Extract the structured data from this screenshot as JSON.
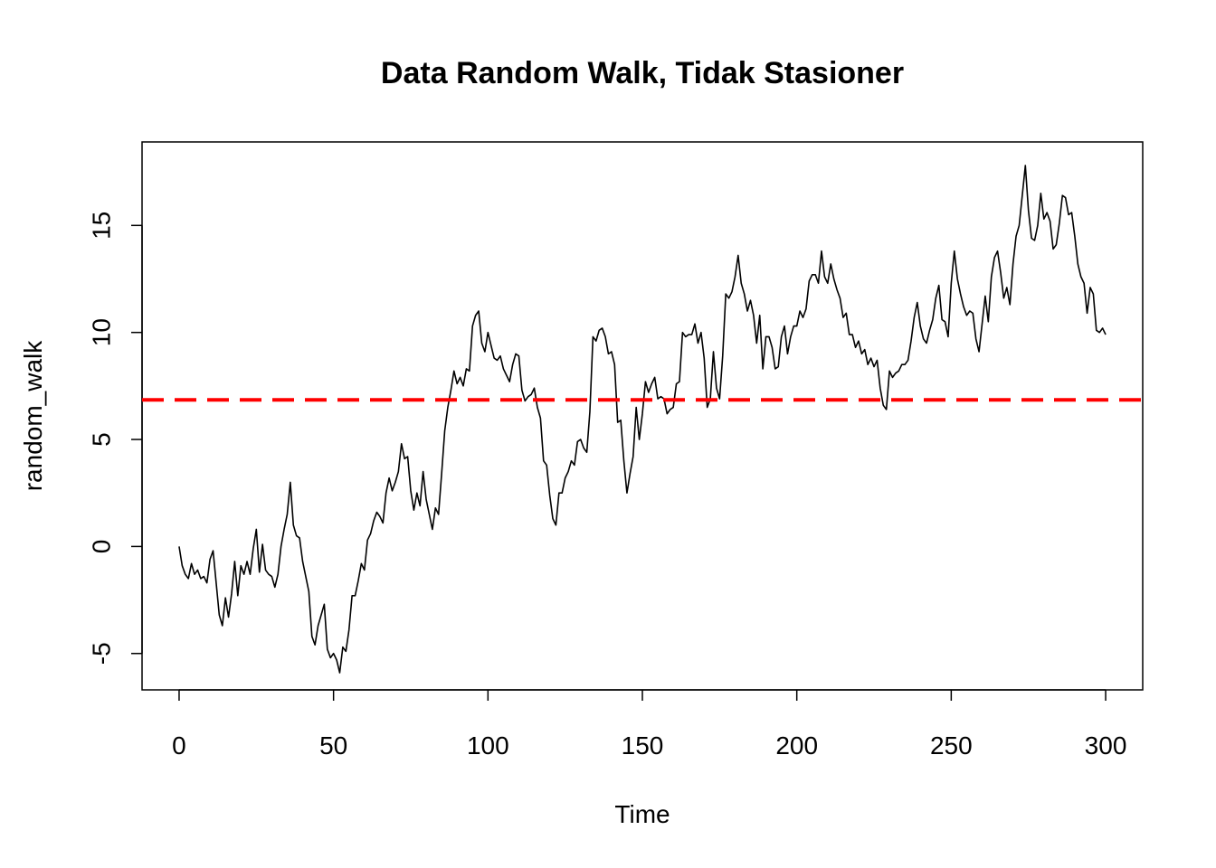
{
  "chart_data": {
    "type": "line",
    "title": "Data Random Walk, Tidak Stasioner",
    "xlabel": "Time",
    "ylabel": "random_walk",
    "xlim": [
      -12,
      312
    ],
    "ylim": [
      -6.7,
      18.9
    ],
    "x_ticks": [
      0,
      50,
      100,
      150,
      200,
      250,
      300
    ],
    "x_tick_labels": [
      "0",
      "50",
      "100",
      "150",
      "200",
      "250",
      "300"
    ],
    "y_ticks": [
      -5,
      0,
      5,
      10,
      15
    ],
    "y_tick_labels": [
      "-5",
      "0",
      "5",
      "10",
      "15"
    ],
    "grid": false,
    "legend": "none",
    "reference_line": {
      "y": 6.85,
      "color": "#ff0000",
      "style": "dashed"
    },
    "series": [
      {
        "color": "#000000",
        "anchors": [
          [
            0,
            0
          ],
          [
            1,
            -0.9
          ],
          [
            2,
            -1.3
          ],
          [
            3,
            -1.5
          ],
          [
            4,
            -0.8
          ],
          [
            5,
            -1.3
          ],
          [
            6,
            -1.1
          ],
          [
            7,
            -1.5
          ],
          [
            8,
            -1.4
          ],
          [
            9,
            -1.7
          ],
          [
            10,
            -0.6
          ],
          [
            11,
            -0.2
          ],
          [
            12,
            -1.7
          ],
          [
            13,
            -3.2
          ],
          [
            14,
            -3.7
          ],
          [
            15,
            -2.4
          ],
          [
            16,
            -3.3
          ],
          [
            17,
            -2.2
          ],
          [
            18,
            -0.7
          ],
          [
            19,
            -2.3
          ],
          [
            20,
            -0.9
          ],
          [
            21,
            -1.3
          ],
          [
            22,
            -0.7
          ],
          [
            23,
            -1.3
          ],
          [
            24,
            -0.1
          ],
          [
            25,
            0.8
          ],
          [
            26,
            -1.2
          ],
          [
            27,
            0.1
          ],
          [
            28,
            -1.1
          ],
          [
            29,
            -1.3
          ],
          [
            30,
            -1.4
          ],
          [
            31,
            -1.9
          ],
          [
            32,
            -1.3
          ],
          [
            33,
            0.0
          ],
          [
            34,
            0.8
          ],
          [
            35,
            1.5
          ],
          [
            36,
            3.0
          ],
          [
            37,
            1.0
          ],
          [
            38,
            0.5
          ],
          [
            39,
            0.4
          ],
          [
            40,
            -0.7
          ],
          [
            41,
            -1.4
          ],
          [
            42,
            -2.1
          ],
          [
            43,
            -4.2
          ],
          [
            44,
            -4.6
          ],
          [
            45,
            -3.7
          ],
          [
            46,
            -3.2
          ],
          [
            47,
            -2.7
          ],
          [
            48,
            -4.8
          ],
          [
            49,
            -5.2
          ],
          [
            50,
            -5.0
          ],
          [
            51,
            -5.3
          ],
          [
            52,
            -5.9
          ],
          [
            53,
            -4.7
          ],
          [
            54,
            -4.9
          ],
          [
            55,
            -3.9
          ],
          [
            56,
            -2.3
          ],
          [
            57,
            -2.3
          ],
          [
            58,
            -1.6
          ],
          [
            59,
            -0.8
          ],
          [
            60,
            -1.1
          ],
          [
            61,
            0.3
          ],
          [
            62,
            0.6
          ],
          [
            63,
            1.2
          ],
          [
            64,
            1.6
          ],
          [
            65,
            1.4
          ],
          [
            66,
            1.1
          ],
          [
            67,
            2.5
          ],
          [
            68,
            3.2
          ],
          [
            69,
            2.6
          ],
          [
            70,
            3.0
          ],
          [
            71,
            3.5
          ],
          [
            72,
            4.8
          ],
          [
            73,
            4.1
          ],
          [
            74,
            4.2
          ],
          [
            75,
            2.6
          ],
          [
            76,
            1.7
          ],
          [
            77,
            2.5
          ],
          [
            78,
            1.9
          ],
          [
            79,
            3.5
          ],
          [
            80,
            2.2
          ],
          [
            81,
            1.5
          ],
          [
            82,
            0.8
          ],
          [
            83,
            1.8
          ],
          [
            84,
            1.5
          ],
          [
            85,
            3.4
          ],
          [
            86,
            5.4
          ],
          [
            87,
            6.5
          ],
          [
            88,
            7.3
          ],
          [
            89,
            8.2
          ],
          [
            90,
            7.6
          ],
          [
            91,
            7.9
          ],
          [
            92,
            7.5
          ],
          [
            93,
            8.3
          ],
          [
            94,
            8.2
          ],
          [
            95,
            10.3
          ],
          [
            96,
            10.8
          ],
          [
            97,
            11.0
          ],
          [
            98,
            9.5
          ],
          [
            99,
            9.1
          ],
          [
            100,
            10.0
          ],
          [
            101,
            9.4
          ],
          [
            102,
            8.8
          ],
          [
            103,
            8.7
          ],
          [
            104,
            8.9
          ],
          [
            105,
            8.3
          ],
          [
            106,
            8.0
          ],
          [
            107,
            7.7
          ],
          [
            108,
            8.5
          ],
          [
            109,
            9.0
          ],
          [
            110,
            8.9
          ],
          [
            111,
            7.3
          ],
          [
            112,
            6.8
          ],
          [
            113,
            7.0
          ],
          [
            114,
            7.1
          ],
          [
            115,
            7.4
          ],
          [
            116,
            6.5
          ],
          [
            117,
            6.0
          ],
          [
            118,
            4.0
          ],
          [
            119,
            3.8
          ],
          [
            120,
            2.4
          ],
          [
            121,
            1.3
          ],
          [
            122,
            1.0
          ],
          [
            123,
            2.5
          ],
          [
            124,
            2.5
          ],
          [
            125,
            3.2
          ],
          [
            126,
            3.5
          ],
          [
            127,
            4.0
          ],
          [
            128,
            3.8
          ],
          [
            129,
            4.9
          ],
          [
            130,
            5.0
          ],
          [
            131,
            4.6
          ],
          [
            132,
            4.4
          ],
          [
            133,
            6.3
          ],
          [
            134,
            9.8
          ],
          [
            135,
            9.6
          ],
          [
            136,
            10.1
          ],
          [
            137,
            10.2
          ],
          [
            138,
            9.8
          ],
          [
            139,
            9.0
          ],
          [
            140,
            9.1
          ],
          [
            141,
            8.5
          ],
          [
            142,
            5.8
          ],
          [
            143,
            5.9
          ],
          [
            144,
            4.0
          ],
          [
            145,
            2.5
          ],
          [
            146,
            3.4
          ],
          [
            147,
            4.2
          ],
          [
            148,
            6.5
          ],
          [
            149,
            5.0
          ],
          [
            150,
            6.2
          ],
          [
            151,
            7.7
          ],
          [
            152,
            7.2
          ],
          [
            153,
            7.6
          ],
          [
            154,
            7.9
          ],
          [
            155,
            6.9
          ],
          [
            156,
            7.0
          ],
          [
            157,
            6.9
          ],
          [
            158,
            6.2
          ],
          [
            159,
            6.4
          ],
          [
            160,
            6.5
          ],
          [
            161,
            7.6
          ],
          [
            162,
            7.7
          ],
          [
            163,
            10.0
          ],
          [
            164,
            9.8
          ],
          [
            165,
            9.9
          ],
          [
            166,
            9.9
          ],
          [
            167,
            10.4
          ],
          [
            168,
            9.5
          ],
          [
            169,
            10.0
          ],
          [
            170,
            8.8
          ],
          [
            171,
            6.5
          ],
          [
            172,
            6.9
          ],
          [
            173,
            9.1
          ],
          [
            174,
            7.4
          ],
          [
            175,
            6.9
          ],
          [
            176,
            8.9
          ],
          [
            177,
            11.8
          ],
          [
            178,
            11.6
          ],
          [
            179,
            11.9
          ],
          [
            180,
            12.6
          ],
          [
            181,
            13.6
          ],
          [
            182,
            12.3
          ],
          [
            183,
            11.8
          ],
          [
            184,
            11.0
          ],
          [
            185,
            11.5
          ],
          [
            186,
            10.8
          ],
          [
            187,
            9.5
          ],
          [
            188,
            10.8
          ],
          [
            189,
            8.3
          ],
          [
            190,
            9.8
          ],
          [
            191,
            9.8
          ],
          [
            192,
            9.3
          ],
          [
            193,
            8.3
          ],
          [
            194,
            8.4
          ],
          [
            195,
            9.8
          ],
          [
            196,
            10.3
          ],
          [
            197,
            9.0
          ],
          [
            198,
            9.8
          ],
          [
            199,
            10.3
          ],
          [
            200,
            10.3
          ],
          [
            201,
            11.0
          ],
          [
            202,
            10.7
          ],
          [
            203,
            11.1
          ],
          [
            204,
            12.4
          ],
          [
            205,
            12.7
          ],
          [
            206,
            12.7
          ],
          [
            207,
            12.3
          ],
          [
            208,
            13.8
          ],
          [
            209,
            12.6
          ],
          [
            210,
            12.3
          ],
          [
            211,
            13.2
          ],
          [
            212,
            12.5
          ],
          [
            213,
            12.0
          ],
          [
            214,
            11.6
          ],
          [
            215,
            10.7
          ],
          [
            216,
            10.9
          ],
          [
            217,
            9.9
          ],
          [
            218,
            9.9
          ],
          [
            219,
            9.3
          ],
          [
            220,
            9.6
          ],
          [
            221,
            9.0
          ],
          [
            222,
            9.2
          ],
          [
            223,
            8.5
          ],
          [
            224,
            8.8
          ],
          [
            225,
            8.4
          ],
          [
            226,
            8.7
          ],
          [
            227,
            7.4
          ],
          [
            228,
            6.6
          ],
          [
            229,
            6.4
          ],
          [
            230,
            8.2
          ],
          [
            231,
            7.9
          ],
          [
            232,
            8.1
          ],
          [
            233,
            8.2
          ],
          [
            234,
            8.5
          ],
          [
            235,
            8.5
          ],
          [
            236,
            8.7
          ],
          [
            237,
            9.6
          ],
          [
            238,
            10.7
          ],
          [
            239,
            11.4
          ],
          [
            240,
            10.3
          ],
          [
            241,
            9.7
          ],
          [
            242,
            9.5
          ],
          [
            243,
            10.1
          ],
          [
            244,
            10.6
          ],
          [
            245,
            11.6
          ],
          [
            246,
            12.2
          ],
          [
            247,
            10.6
          ],
          [
            248,
            10.5
          ],
          [
            249,
            9.8
          ],
          [
            250,
            12.3
          ],
          [
            251,
            13.8
          ],
          [
            252,
            12.5
          ],
          [
            253,
            11.8
          ],
          [
            254,
            11.2
          ],
          [
            255,
            10.8
          ],
          [
            256,
            11.0
          ],
          [
            257,
            10.9
          ],
          [
            258,
            9.7
          ],
          [
            259,
            9.1
          ],
          [
            260,
            10.4
          ],
          [
            261,
            11.7
          ],
          [
            262,
            10.5
          ],
          [
            263,
            12.6
          ],
          [
            264,
            13.5
          ],
          [
            265,
            13.8
          ],
          [
            266,
            12.8
          ],
          [
            267,
            11.6
          ],
          [
            268,
            12.1
          ],
          [
            269,
            11.3
          ],
          [
            270,
            13.2
          ],
          [
            271,
            14.5
          ],
          [
            272,
            15.0
          ],
          [
            273,
            16.4
          ],
          [
            274,
            17.8
          ],
          [
            275,
            15.7
          ],
          [
            276,
            14.4
          ],
          [
            277,
            14.3
          ],
          [
            278,
            15.0
          ],
          [
            279,
            16.5
          ],
          [
            280,
            15.3
          ],
          [
            281,
            15.6
          ],
          [
            282,
            15.2
          ],
          [
            283,
            13.9
          ],
          [
            284,
            14.1
          ],
          [
            285,
            15.1
          ],
          [
            286,
            16.4
          ],
          [
            287,
            16.3
          ],
          [
            288,
            15.5
          ],
          [
            289,
            15.6
          ],
          [
            290,
            14.5
          ],
          [
            291,
            13.2
          ],
          [
            292,
            12.6
          ],
          [
            293,
            12.3
          ],
          [
            294,
            10.9
          ],
          [
            295,
            12.1
          ],
          [
            296,
            11.8
          ],
          [
            297,
            10.1
          ],
          [
            298,
            10.0
          ],
          [
            299,
            10.2
          ],
          [
            300,
            9.9
          ]
        ]
      }
    ]
  }
}
